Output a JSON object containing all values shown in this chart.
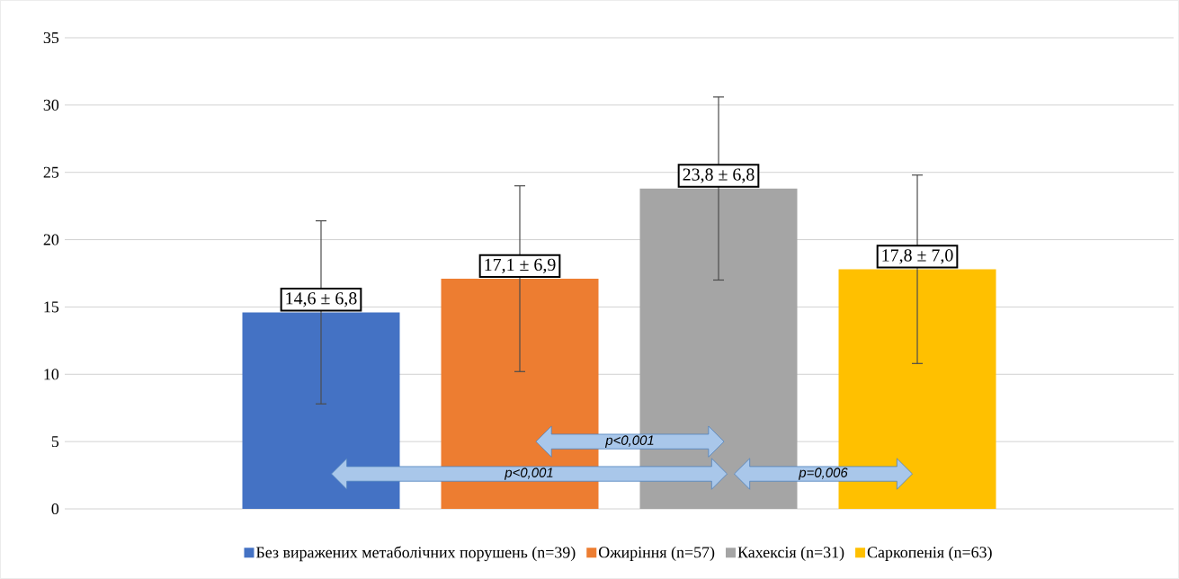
{
  "chart_data": {
    "type": "bar",
    "categories": [
      null
    ],
    "series": [
      {
        "name": "Без виражених метаболічних порушень (n=39)",
        "color": "#4472c4",
        "values": [
          14.6
        ],
        "errors": [
          6.8
        ],
        "value_labels": [
          "14,6 ± 6,8"
        ]
      },
      {
        "name": "Ожиріння (n=57)",
        "color": "#ed7d31",
        "values": [
          17.1
        ],
        "errors": [
          6.9
        ],
        "value_labels": [
          "17,1 ± 6,9"
        ]
      },
      {
        "name": "Кахексія (n=31)",
        "color": "#a5a5a5",
        "values": [
          23.8
        ],
        "errors": [
          6.8
        ],
        "value_labels": [
          "23,8 ± 6,8"
        ]
      },
      {
        "name": "Саркопенія (n=63)",
        "color": "#ffc000",
        "values": [
          17.8
        ],
        "errors": [
          7.0
        ],
        "value_labels": [
          "17,8 ± 7,0"
        ]
      }
    ],
    "ylim": [
      0,
      35
    ],
    "yticks": [
      0,
      5,
      10,
      15,
      20,
      25,
      30,
      35
    ],
    "grid": "y",
    "legend": "bottom",
    "annotations": [
      "p<0,001",
      "p<0,001",
      "p=0,006"
    ]
  }
}
